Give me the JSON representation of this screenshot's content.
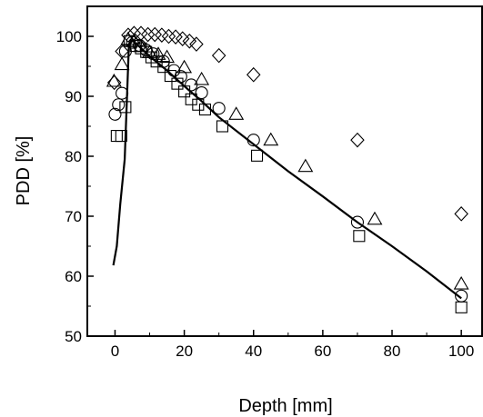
{
  "chart_data": {
    "type": "scatter",
    "title": "",
    "xlabel": "Depth [mm]",
    "ylabel": "PDD [%]",
    "xlim": [
      -8,
      106
    ],
    "ylim": [
      50,
      105
    ],
    "xticks": [
      0,
      20,
      40,
      60,
      80,
      100
    ],
    "yticks": [
      50,
      60,
      70,
      80,
      90,
      100
    ],
    "grid": false,
    "legend": "none",
    "series": [
      {
        "kind": "line",
        "color": "#000000",
        "points": [
          [
            -0.5,
            61.8
          ],
          [
            0.5,
            65
          ],
          [
            1.5,
            72
          ],
          [
            2.8,
            79.5
          ],
          [
            4.0,
            98.5
          ],
          [
            5.0,
            99.3
          ],
          [
            7.0,
            98.3
          ],
          [
            10.0,
            96.7
          ],
          [
            15.0,
            94.3
          ],
          [
            20.0,
            91.7
          ],
          [
            25.0,
            89.2
          ],
          [
            30.0,
            86.5
          ],
          [
            40.0,
            82.0
          ],
          [
            50.0,
            77.5
          ],
          [
            60.0,
            73.3
          ],
          [
            70.0,
            69.0
          ],
          [
            80.0,
            65.0
          ],
          [
            90.0,
            60.8
          ],
          [
            100.0,
            56.3
          ]
        ]
      },
      {
        "kind": "marker",
        "marker": "diamond",
        "points": [
          [
            -0.2,
            92.3
          ],
          [
            2.0,
            97.5
          ],
          [
            3.8,
            100.2
          ],
          [
            5.5,
            100.5
          ],
          [
            7.5,
            100.5
          ],
          [
            9.5,
            100.3
          ],
          [
            11.5,
            100.3
          ],
          [
            13.5,
            100.2
          ],
          [
            15.5,
            100.0
          ],
          [
            17.5,
            99.9
          ],
          [
            19.5,
            99.6
          ],
          [
            21.5,
            99.2
          ],
          [
            23.5,
            98.7
          ],
          [
            30.0,
            96.8
          ],
          [
            40.0,
            93.6
          ],
          [
            70.0,
            82.7
          ],
          [
            100.0,
            70.4
          ]
        ]
      },
      {
        "kind": "marker",
        "marker": "triangle",
        "points": [
          [
            -0.3,
            92.5
          ],
          [
            2.0,
            95.3
          ],
          [
            3.8,
            99.5
          ],
          [
            5.5,
            99.2
          ],
          [
            7.5,
            98.3
          ],
          [
            10.0,
            97.3
          ],
          [
            12.5,
            97.0
          ],
          [
            15.0,
            96.5
          ],
          [
            20.0,
            94.8
          ],
          [
            25.0,
            92.8
          ],
          [
            35.0,
            87.0
          ],
          [
            45.0,
            82.7
          ],
          [
            55.0,
            78.3
          ],
          [
            75.0,
            69.5
          ],
          [
            100.0,
            58.7
          ]
        ]
      },
      {
        "kind": "marker",
        "marker": "circle",
        "points": [
          [
            0.0,
            87.0
          ],
          [
            1.0,
            88.6
          ],
          [
            2.0,
            90.5
          ],
          [
            3.0,
            97.5
          ],
          [
            5.0,
            99.0
          ],
          [
            7.0,
            98.5
          ],
          [
            9.0,
            97.7
          ],
          [
            11.0,
            97.1
          ],
          [
            14.0,
            95.8
          ],
          [
            17.0,
            94.3
          ],
          [
            19.0,
            93.3
          ],
          [
            22.0,
            91.9
          ],
          [
            25.0,
            90.6
          ],
          [
            30.0,
            88.0
          ],
          [
            40.0,
            82.7
          ],
          [
            70.0,
            69.0
          ],
          [
            100.0,
            56.7
          ]
        ]
      },
      {
        "kind": "marker",
        "marker": "square",
        "points": [
          [
            0.5,
            83.4
          ],
          [
            1.8,
            83.4
          ],
          [
            3.0,
            88.2
          ],
          [
            4.2,
            99.2
          ],
          [
            6.0,
            98.4
          ],
          [
            7.5,
            98.0
          ],
          [
            9.0,
            97.4
          ],
          [
            10.5,
            96.5
          ],
          [
            12.0,
            95.8
          ],
          [
            14.0,
            94.9
          ],
          [
            16.0,
            93.4
          ],
          [
            18.0,
            92.1
          ],
          [
            20.0,
            90.8
          ],
          [
            22.0,
            89.5
          ],
          [
            24.0,
            88.6
          ],
          [
            26.0,
            87.8
          ],
          [
            31.0,
            85.0
          ],
          [
            41.0,
            80.1
          ],
          [
            70.5,
            66.7
          ],
          [
            100.0,
            54.8
          ]
        ]
      }
    ]
  }
}
